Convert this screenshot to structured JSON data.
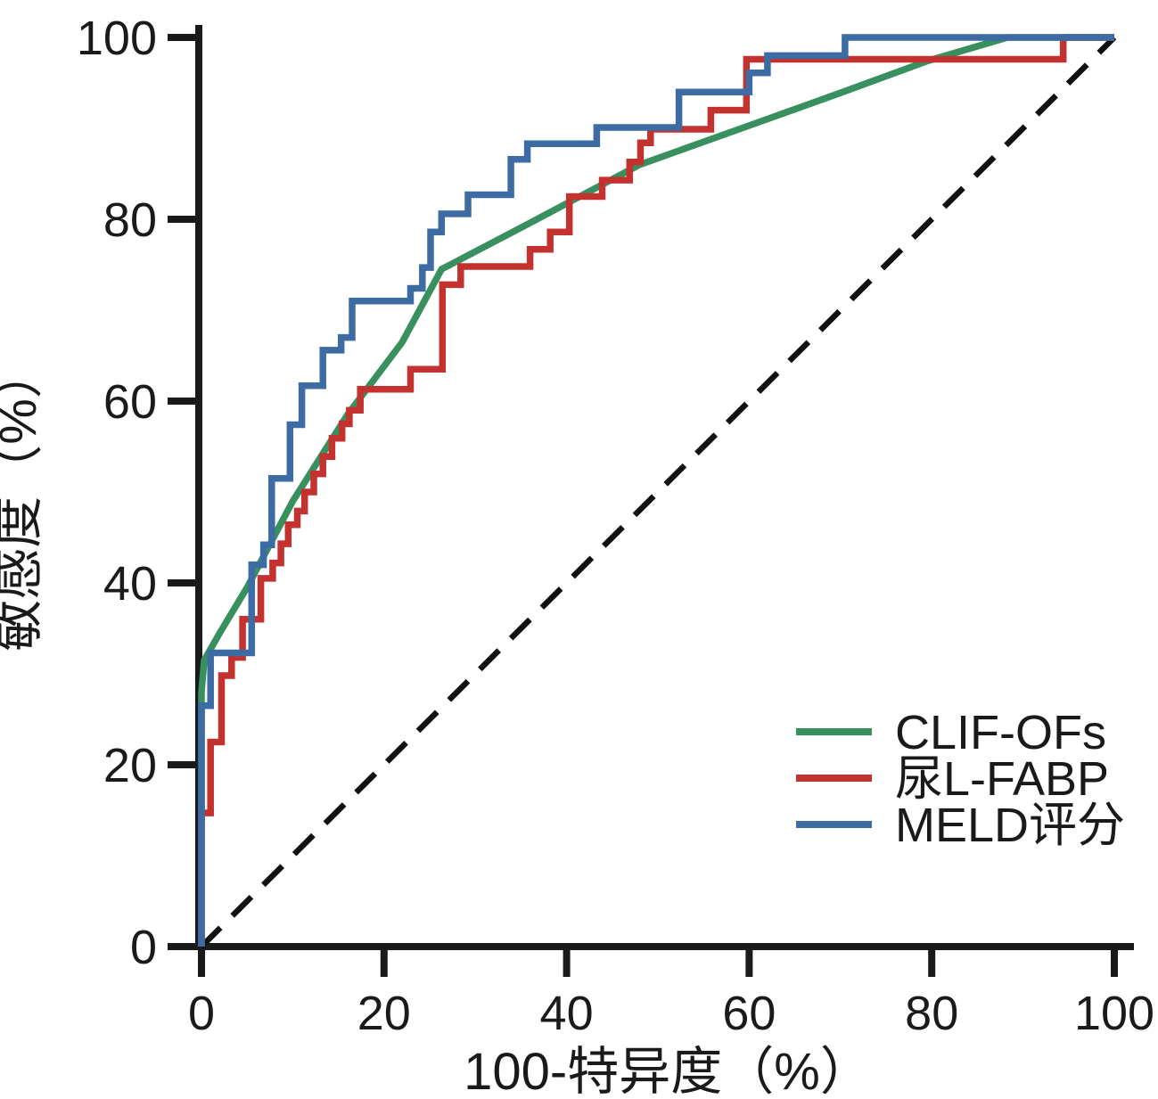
{
  "figure": {
    "background": "#ffffff",
    "text_color": "#1a1a1a"
  },
  "chart_data": {
    "type": "line",
    "subtype": "roc-step-curves",
    "title": "",
    "xlabel": "100-特异度（%）",
    "ylabel": "敏感度（%）",
    "xlim": [
      0,
      100
    ],
    "ylim": [
      0,
      100
    ],
    "x_ticks": [
      "0",
      "20",
      "40",
      "60",
      "80",
      "100"
    ],
    "y_ticks": [
      "0",
      "20",
      "40",
      "60",
      "80",
      "100"
    ],
    "grid": false,
    "legend_position": "lower-right",
    "axis_color": "#1a1a1a",
    "reference_line": {
      "name": "chance-diagonal",
      "style": "dashed",
      "color": "#111111",
      "from": [
        0,
        0
      ],
      "to": [
        100,
        100
      ]
    },
    "series": [
      {
        "name": "CLIF-OFs",
        "color": "#38905e",
        "points": [
          [
            0,
            0
          ],
          [
            0,
            28
          ],
          [
            0.3,
            31.5
          ],
          [
            2,
            34.5
          ],
          [
            5,
            39.5
          ],
          [
            10,
            49
          ],
          [
            16,
            58.5
          ],
          [
            22,
            66.5
          ],
          [
            26.3,
            74.5
          ],
          [
            36,
            79.6
          ],
          [
            48,
            86
          ],
          [
            60,
            90.3
          ],
          [
            70,
            93.9
          ],
          [
            79.5,
            97.4
          ],
          [
            88.3,
            100
          ],
          [
            100,
            100
          ]
        ]
      },
      {
        "name": "尿L-FABP",
        "color": "#c3322e",
        "points": [
          [
            0,
            0
          ],
          [
            0,
            14.7
          ],
          [
            1,
            14.7
          ],
          [
            1,
            22.5
          ],
          [
            2.2,
            22.5
          ],
          [
            2.2,
            29.8
          ],
          [
            3.3,
            29.8
          ],
          [
            3.3,
            31.8
          ],
          [
            4.5,
            31.8
          ],
          [
            4.5,
            36
          ],
          [
            6.5,
            36
          ],
          [
            6.5,
            40.5
          ],
          [
            7.8,
            40.5
          ],
          [
            7.8,
            42.2
          ],
          [
            8.7,
            42.2
          ],
          [
            8.7,
            44.3
          ],
          [
            9.5,
            44.3
          ],
          [
            9.5,
            46.4
          ],
          [
            10.5,
            46.4
          ],
          [
            10.5,
            47.9
          ],
          [
            11.3,
            47.9
          ],
          [
            11.3,
            50
          ],
          [
            12.3,
            50
          ],
          [
            12.3,
            52
          ],
          [
            13.3,
            52
          ],
          [
            13.3,
            53.9
          ],
          [
            14.3,
            53.9
          ],
          [
            14.3,
            55.9
          ],
          [
            15.4,
            55.9
          ],
          [
            15.4,
            57.5
          ],
          [
            16.2,
            57.5
          ],
          [
            16.2,
            59
          ],
          [
            17.4,
            59
          ],
          [
            17.4,
            61.3
          ],
          [
            22.9,
            61.3
          ],
          [
            22.9,
            63.5
          ],
          [
            26.4,
            63.5
          ],
          [
            26.4,
            72.8
          ],
          [
            28.4,
            72.8
          ],
          [
            28.4,
            74.8
          ],
          [
            36,
            74.8
          ],
          [
            36,
            76.7
          ],
          [
            38.2,
            76.7
          ],
          [
            38.2,
            78.6
          ],
          [
            40.3,
            78.6
          ],
          [
            40.3,
            82.5
          ],
          [
            43.9,
            82.5
          ],
          [
            43.9,
            84.3
          ],
          [
            46.9,
            84.3
          ],
          [
            46.9,
            86.3
          ],
          [
            48.1,
            86.3
          ],
          [
            48.1,
            88.4
          ],
          [
            49.2,
            88.4
          ],
          [
            49.2,
            89.9
          ],
          [
            55.8,
            89.9
          ],
          [
            55.8,
            92
          ],
          [
            59.7,
            92
          ],
          [
            59.7,
            97.6
          ],
          [
            94.4,
            97.6
          ],
          [
            94.4,
            100
          ],
          [
            100,
            100
          ]
        ]
      },
      {
        "name": "MELD评分",
        "color": "#3d6ba3",
        "points": [
          [
            0,
            0
          ],
          [
            0,
            26.5
          ],
          [
            1,
            26.5
          ],
          [
            1,
            32.3
          ],
          [
            5.5,
            32.3
          ],
          [
            5.5,
            42
          ],
          [
            6.8,
            42
          ],
          [
            6.8,
            44.2
          ],
          [
            7.7,
            44.2
          ],
          [
            7.7,
            51.5
          ],
          [
            9.7,
            51.5
          ],
          [
            9.7,
            57.4
          ],
          [
            11,
            57.4
          ],
          [
            11,
            61.7
          ],
          [
            13.3,
            61.7
          ],
          [
            13.3,
            65.6
          ],
          [
            15.3,
            65.6
          ],
          [
            15.3,
            67
          ],
          [
            16.5,
            67
          ],
          [
            16.5,
            71
          ],
          [
            22.9,
            71
          ],
          [
            22.9,
            72.4
          ],
          [
            24.2,
            72.4
          ],
          [
            24.2,
            74.7
          ],
          [
            25.1,
            74.7
          ],
          [
            25.1,
            78.6
          ],
          [
            26.3,
            78.6
          ],
          [
            26.3,
            80.6
          ],
          [
            29.2,
            80.6
          ],
          [
            29.2,
            82.7
          ],
          [
            33.9,
            82.7
          ],
          [
            33.9,
            86.6
          ],
          [
            35.7,
            86.6
          ],
          [
            35.7,
            88.3
          ],
          [
            43.3,
            88.3
          ],
          [
            43.3,
            90.1
          ],
          [
            52.3,
            90.1
          ],
          [
            52.3,
            94
          ],
          [
            60,
            94
          ],
          [
            60,
            96.1
          ],
          [
            62,
            96.1
          ],
          [
            62,
            98
          ],
          [
            70.5,
            98
          ],
          [
            70.5,
            100
          ],
          [
            100,
            100
          ]
        ]
      }
    ]
  }
}
